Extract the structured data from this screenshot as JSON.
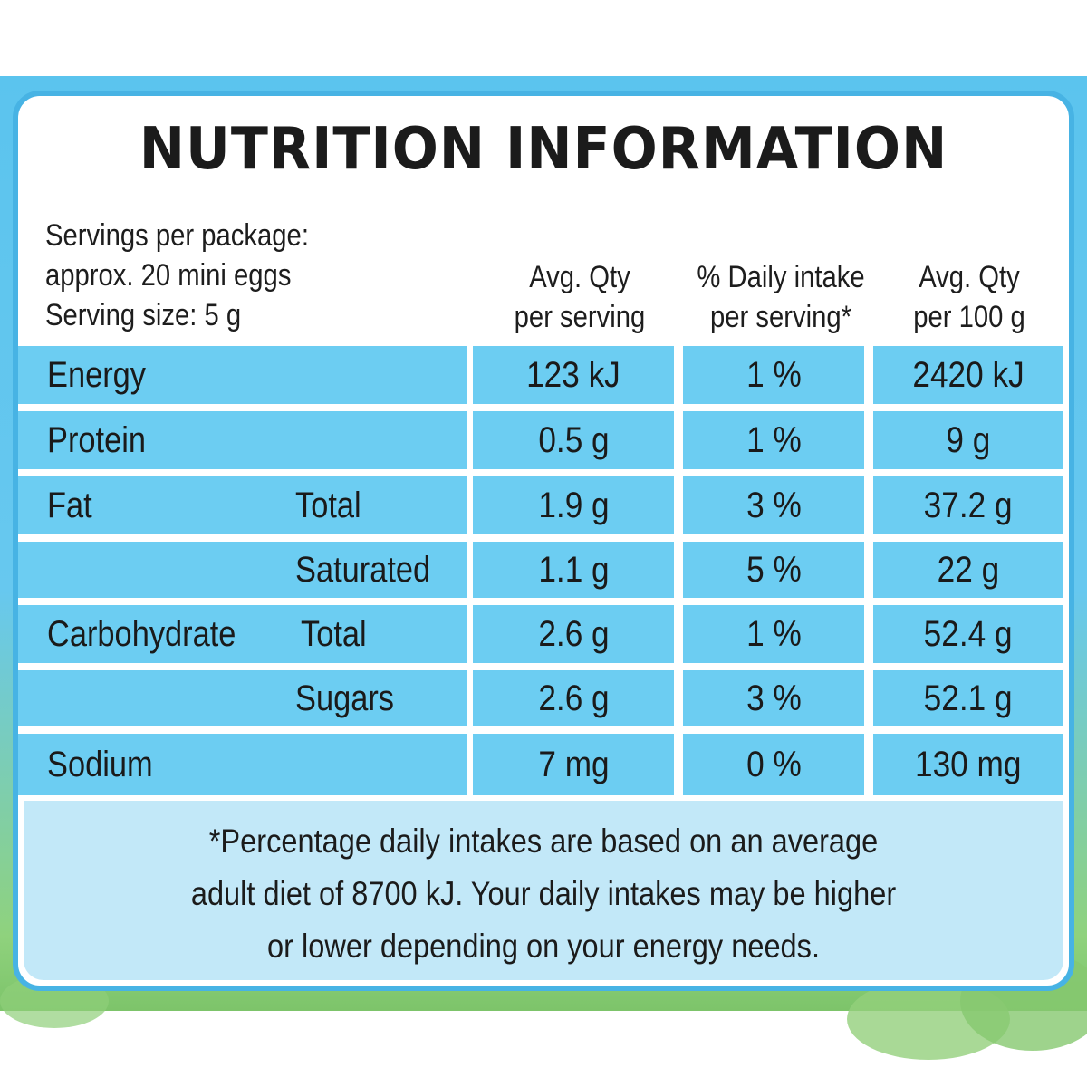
{
  "title": "NUTRITION INFORMATION",
  "serving_info": {
    "line1": "Servings per package:",
    "line2": "approx. 20 mini eggs",
    "line3": "Serving size: 5 g"
  },
  "columns": {
    "per_serving": {
      "line1": "Avg. Qty",
      "line2": "per serving"
    },
    "daily_intake": {
      "line1": "% Daily intake",
      "line2": "per serving*"
    },
    "per_100g": {
      "line1": "Avg. Qty",
      "line2": "per 100 g"
    }
  },
  "rows": [
    {
      "label": "Energy",
      "sub": "",
      "per_serving": "123 kJ",
      "daily": "1 %",
      "per_100g": "2420 kJ"
    },
    {
      "label": "Protein",
      "sub": "",
      "per_serving": "0.5 g",
      "daily": "1 %",
      "per_100g": "9 g"
    },
    {
      "label": "Fat",
      "sub": "Total",
      "per_serving": "1.9 g",
      "daily": "3 %",
      "per_100g": "37.2 g"
    },
    {
      "label": "",
      "sub": "Saturated",
      "per_serving": "1.1 g",
      "daily": "5 %",
      "per_100g": "22 g"
    },
    {
      "label": "Carbohydrate",
      "sub": "Total",
      "per_serving": "2.6 g",
      "daily": "1 %",
      "per_100g": "52.4 g"
    },
    {
      "label": "",
      "sub": "Sugars",
      "per_serving": "2.6 g",
      "daily": "3 %",
      "per_100g": "52.1 g"
    },
    {
      "label": "Sodium",
      "sub": "",
      "per_serving": "7 mg",
      "daily": "0 %",
      "per_100g": "130 mg"
    }
  ],
  "footnote": {
    "line1": "*Percentage daily intakes are based on an average",
    "line2": "adult diet of 8700 kJ. Your daily intakes may be higher",
    "line3": "or lower depending on your energy needs."
  },
  "colors": {
    "panel_border": "#47b3e4",
    "row_fill": "#6ccdf2",
    "footer_fill": "#c2e8f8"
  }
}
